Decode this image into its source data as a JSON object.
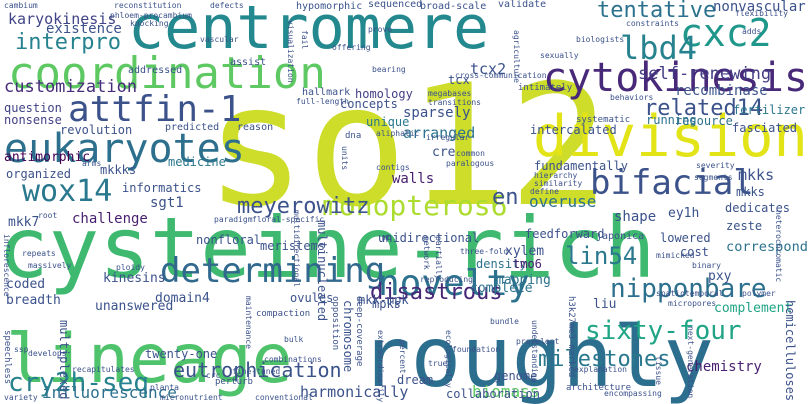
{
  "words": [
    {
      "text": "so12",
      "color": "#cddd2a"
    },
    {
      "text": "cysteine-rich",
      "color": "#3eb96f"
    },
    {
      "text": "roughly",
      "color": "#2c6e8e"
    },
    {
      "text": "centromere",
      "color": "#23898e"
    },
    {
      "text": "lineage",
      "color": "#4ec36b"
    },
    {
      "text": "coordination",
      "color": "#5ec962"
    },
    {
      "text": "division",
      "color": "#e2e418"
    },
    {
      "text": "cytokinesis",
      "color": "#482878"
    },
    {
      "text": "eukaryotes",
      "color": "#2d708e"
    },
    {
      "text": "attfin-1",
      "color": "#3b528b"
    },
    {
      "text": "cxc2",
      "color": "#1f988b"
    },
    {
      "text": "lbd4",
      "color": "#26828e"
    },
    {
      "text": "bifacial",
      "color": "#3b528b"
    },
    {
      "text": "determining",
      "color": "#31688e"
    },
    {
      "text": "novelty",
      "color": "#2c728e"
    },
    {
      "text": "wox14",
      "color": "#2a788e"
    },
    {
      "text": "cry2h-seq",
      "color": "#26828e"
    },
    {
      "text": "monopteros6",
      "color": "#addc30"
    },
    {
      "text": "meyerowitz",
      "color": "#3b528b"
    },
    {
      "text": "disastrous",
      "color": "#482677"
    },
    {
      "text": "nipponbare",
      "color": "#2d708e"
    },
    {
      "text": "sixty-four",
      "color": "#20a486"
    },
    {
      "text": "related14",
      "color": "#3b528b"
    },
    {
      "text": "tentative",
      "color": "#2c728e"
    },
    {
      "text": "interpro",
      "color": "#26828e"
    },
    {
      "text": "karyokinesis",
      "color": "#414487"
    },
    {
      "text": "existence",
      "color": "#3b528b"
    },
    {
      "text": "customization",
      "color": "#472d7b"
    },
    {
      "text": "self-renewing",
      "color": "#433e85"
    },
    {
      "text": "recombinase",
      "color": "#3b528b"
    },
    {
      "text": "lin54",
      "color": "#2a788e"
    },
    {
      "text": "milestones",
      "color": "#2a788e"
    },
    {
      "text": "eutrophication",
      "color": "#3b528b"
    },
    {
      "text": "influorescence",
      "color": "#2d708e"
    },
    {
      "text": "harmonically",
      "color": "#3b528b"
    },
    {
      "text": "biomass",
      "color": "#5ec962"
    },
    {
      "text": "chemistry",
      "color": "#481f70"
    },
    {
      "text": "complement",
      "color": "#20a486"
    },
    {
      "text": "correspond",
      "color": "#2c728e"
    },
    {
      "text": "mkks",
      "color": "#3b528b"
    },
    {
      "text": "mkk7",
      "color": "#3b528b"
    },
    {
      "text": "sgt1",
      "color": "#3b528b"
    },
    {
      "text": "antimorphic",
      "color": "#440154"
    },
    {
      "text": "nonsense",
      "color": "#433e85"
    },
    {
      "text": "revolution",
      "color": "#3b528b"
    },
    {
      "text": "question",
      "color": "#414487"
    },
    {
      "text": "challenge",
      "color": "#481f70"
    },
    {
      "text": "informatics",
      "color": "#3b528b"
    },
    {
      "text": "medicine",
      "color": "#2a788e"
    },
    {
      "text": "walls",
      "color": "#481f70"
    },
    {
      "text": "arranged",
      "color": "#2c728e"
    },
    {
      "text": "sparsely",
      "color": "#3b528b"
    },
    {
      "text": "homology",
      "color": "#433e85"
    },
    {
      "text": "concepts",
      "color": "#3b528b"
    },
    {
      "text": "unique",
      "color": "#2a788e"
    },
    {
      "text": "tcx2",
      "color": "#3b528b"
    },
    {
      "text": "tcx",
      "color": "#3b528b"
    },
    {
      "text": "en",
      "color": "#3b528b"
    },
    {
      "text": "overuse",
      "color": "#2c728e"
    },
    {
      "text": "shape",
      "color": "#3b528b"
    },
    {
      "text": "ey1h",
      "color": "#3b528b"
    },
    {
      "text": "mkks",
      "color": "#3b528b"
    },
    {
      "text": "dedicates",
      "color": "#3b528b"
    },
    {
      "text": "zeste",
      "color": "#3b528b"
    },
    {
      "text": "fertilizer",
      "color": "#2a788e"
    },
    {
      "text": "fasciated",
      "color": "#3b528b"
    },
    {
      "text": "resource",
      "color": "#2c728e"
    },
    {
      "text": "running",
      "color": "#2c728e"
    },
    {
      "text": "intercalated",
      "color": "#3b528b"
    },
    {
      "text": "fundamentally",
      "color": "#3b528b"
    },
    {
      "text": "feedforward",
      "color": "#3b528b"
    },
    {
      "text": "unidirectional",
      "color": "#3b528b"
    },
    {
      "text": "xylem",
      "color": "#3b528b"
    },
    {
      "text": "density",
      "color": "#2c728e"
    },
    {
      "text": "tmo6",
      "color": "#481f70"
    },
    {
      "text": "mapping",
      "color": "#2c728e"
    },
    {
      "text": "complete",
      "color": "#2c728e"
    },
    {
      "text": "liu",
      "color": "#3b528b"
    },
    {
      "text": "pxy",
      "color": "#3b528b"
    },
    {
      "text": "lowered",
      "color": "#3b528b"
    },
    {
      "text": "cost",
      "color": "#3b528b"
    },
    {
      "text": "coded",
      "color": "#3b528b"
    },
    {
      "text": "breadth",
      "color": "#3b528b"
    },
    {
      "text": "unanswered",
      "color": "#3b528b"
    },
    {
      "text": "kinesins",
      "color": "#3b528b"
    },
    {
      "text": "domain4",
      "color": "#3b528b"
    },
    {
      "text": "twenty-one",
      "color": "#3b528b"
    },
    {
      "text": "nonfloral",
      "color": "#3b528b"
    },
    {
      "text": "ovules",
      "color": "#3b528b"
    },
    {
      "text": "meristems",
      "color": "#3b528b"
    },
    {
      "text": "mkk-mpk",
      "color": "#3b528b"
    },
    {
      "text": "mpks",
      "color": "#3b528b"
    },
    {
      "text": "dream",
      "color": "#3b528b"
    },
    {
      "text": "genome",
      "color": "#3b528b"
    },
    {
      "text": "collaboration",
      "color": "#3b528b"
    },
    {
      "text": "nonvascular",
      "color": "#3b528b"
    },
    {
      "text": "organized",
      "color": "#3b528b"
    },
    {
      "text": "mkkks",
      "color": "#3b528b"
    },
    {
      "text": "multinucleated",
      "color": "#3b528b"
    },
    {
      "text": "chromosome",
      "color": "#3b528b"
    },
    {
      "text": "hemicelluloses",
      "color": "#3b528b"
    },
    {
      "text": "multiplexed",
      "color": "#3b528b"
    },
    {
      "text": "addressed",
      "color": "#3b528b"
    },
    {
      "text": "predicted",
      "color": "#3b528b"
    },
    {
      "text": "reason",
      "color": "#3b528b"
    },
    {
      "text": "hallmark",
      "color": "#3b528b"
    },
    {
      "text": "assist",
      "color": "#3b528b"
    },
    {
      "text": "validate",
      "color": "#3b528b"
    },
    {
      "text": "sequenced",
      "color": "#3b528b"
    },
    {
      "text": "broad-scale",
      "color": "#3b528b"
    },
    {
      "text": "hypomorphic",
      "color": "#3b528b"
    },
    {
      "text": "reconstitution",
      "color": "#3b528b"
    },
    {
      "text": "phloem-procambium",
      "color": "#3b528b"
    },
    {
      "text": "defects",
      "color": "#3b528b"
    },
    {
      "text": "flexibility",
      "color": "#3b528b"
    },
    {
      "text": "constraints",
      "color": "#3b528b"
    },
    {
      "text": "biologists",
      "color": "#3b528b"
    },
    {
      "text": "offering",
      "color": "#3b528b"
    },
    {
      "text": "prove",
      "color": "#3b528b"
    },
    {
      "text": "intimately",
      "color": "#3b528b"
    },
    {
      "text": "sexually",
      "color": "#3b528b"
    },
    {
      "text": "megabases",
      "color": "#3b528b"
    },
    {
      "text": "transitions",
      "color": "#3b528b"
    },
    {
      "text": "systematic",
      "color": "#3b528b"
    },
    {
      "text": "behaviors",
      "color": "#3b528b"
    },
    {
      "text": "cre",
      "color": "#3b528b"
    },
    {
      "text": "aliphatic",
      "color": "#3b528b"
    },
    {
      "text": "irregular",
      "color": "#3b528b"
    },
    {
      "text": "paralogous",
      "color": "#3b528b"
    },
    {
      "text": "contigs",
      "color": "#3b528b"
    },
    {
      "text": "dna",
      "color": "#3b528b"
    },
    {
      "text": "units",
      "color": "#3b528b"
    },
    {
      "text": "full-length",
      "color": "#3b528b"
    },
    {
      "text": "cross-communication",
      "color": "#3b528b"
    },
    {
      "text": "common",
      "color": "#3b528b"
    },
    {
      "text": "hierarchy",
      "color": "#3b528b"
    },
    {
      "text": "similarity",
      "color": "#3b528b"
    },
    {
      "text": "severity",
      "color": "#3b528b"
    },
    {
      "text": "segments",
      "color": "#3b528b"
    },
    {
      "text": "define",
      "color": "#3b528b"
    },
    {
      "text": "japonica",
      "color": "#3b528b"
    },
    {
      "text": "mimicked",
      "color": "#3b528b"
    },
    {
      "text": "binary",
      "color": "#3b528b"
    },
    {
      "text": "three-fold",
      "color": "#3b528b"
    },
    {
      "text": "polymer",
      "color": "#3b528b"
    },
    {
      "text": "spatiotemporal",
      "color": "#3b528b"
    },
    {
      "text": "micropores",
      "color": "#3b528b"
    },
    {
      "text": "heterochromatic",
      "color": "#3b528b"
    },
    {
      "text": "next-generation",
      "color": "#3b528b"
    },
    {
      "text": "prevalent",
      "color": "#3b528b"
    },
    {
      "text": "bundle",
      "color": "#3b528b"
    },
    {
      "text": "understanding",
      "color": "#3b528b"
    },
    {
      "text": "ecologically",
      "color": "#3b528b"
    },
    {
      "text": "percent",
      "color": "#3b528b"
    },
    {
      "text": "extraordinarily",
      "color": "#3b528b"
    },
    {
      "text": "architecture",
      "color": "#3b528b"
    },
    {
      "text": "encompassing",
      "color": "#3b528b"
    },
    {
      "text": "tissue",
      "color": "#3b528b"
    },
    {
      "text": "perturb",
      "color": "#3b528b"
    },
    {
      "text": "fine-tuned",
      "color": "#3b528b"
    },
    {
      "text": "planta",
      "color": "#3b528b"
    },
    {
      "text": "crc",
      "color": "#3b528b"
    },
    {
      "text": "conventional",
      "color": "#3b528b"
    },
    {
      "text": "micronutrient",
      "color": "#3b528b"
    },
    {
      "text": "variety",
      "color": "#3b528b"
    },
    {
      "text": "recapitulates",
      "color": "#3b528b"
    },
    {
      "text": "speechless",
      "color": "#3b528b"
    },
    {
      "text": "ssp",
      "color": "#3b528b"
    },
    {
      "text": "develops",
      "color": "#3b528b"
    },
    {
      "text": "ploidy",
      "color": "#3b528b"
    },
    {
      "text": "massively",
      "color": "#3b528b"
    },
    {
      "text": "repeats",
      "color": "#3b528b"
    },
    {
      "text": "inflorescence",
      "color": "#3b528b"
    },
    {
      "text": "root",
      "color": "#3b528b"
    },
    {
      "text": "compaction",
      "color": "#3b528b"
    },
    {
      "text": "bulk",
      "color": "#3b528b"
    },
    {
      "text": "maintenance",
      "color": "#3b528b"
    },
    {
      "text": "paradigm",
      "color": "#3b528b"
    },
    {
      "text": "floral-specific",
      "color": "#3b528b"
    },
    {
      "text": "multidirectional",
      "color": "#3b528b"
    },
    {
      "text": "opposition",
      "color": "#3b528b"
    },
    {
      "text": "deep-coverage",
      "color": "#3b528b"
    },
    {
      "text": "network",
      "color": "#3b528b"
    },
    {
      "text": "partially",
      "color": "#3b528b"
    },
    {
      "text": "mb",
      "color": "#3b528b"
    },
    {
      "text": "reproducing",
      "color": "#3b528b"
    },
    {
      "text": "h3k27me3-marked",
      "color": "#3b528b"
    },
    {
      "text": "combinations",
      "color": "#3b528b"
    },
    {
      "text": "foundation",
      "color": "#3b528b"
    },
    {
      "text": "true",
      "color": "#3b528b"
    },
    {
      "text": "explanation",
      "color": "#3b528b"
    },
    {
      "text": "cambium",
      "color": "#3b528b"
    },
    {
      "text": "knocking",
      "color": "#3b528b"
    },
    {
      "text": "fail",
      "color": "#3b528b"
    },
    {
      "text": "vascular",
      "color": "#3b528b"
    },
    {
      "text": "visualization",
      "color": "#3b528b"
    },
    {
      "text": "bearing",
      "color": "#3b528b"
    },
    {
      "text": "agriculture",
      "color": "#3b528b"
    },
    {
      "text": "adds",
      "color": "#3b528b"
    },
    {
      "text": "arms",
      "color": "#3b528b"
    }
  ]
}
